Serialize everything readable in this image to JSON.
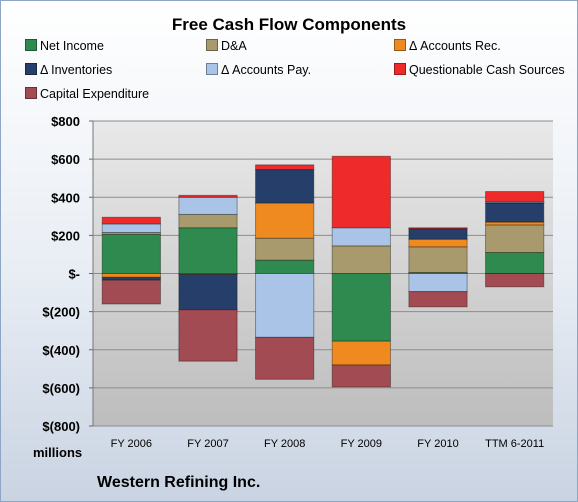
{
  "chart_data": {
    "type": "bar",
    "stacked": true,
    "title": "Free Cash Flow Components",
    "categories": [
      "FY 2006",
      "FY 2007",
      "FY 2008",
      "FY 2009",
      "FY 2010",
      "TTM 6-2011"
    ],
    "y_tick_labels": [
      "$800",
      "$600",
      "$400",
      "$200",
      "$-",
      "$(200)",
      "$(400)",
      "$(600)",
      "$(800)"
    ],
    "y_tick_values": [
      800,
      600,
      400,
      200,
      0,
      -200,
      -400,
      -600,
      -800
    ],
    "ylim": [
      -800,
      800
    ],
    "ylabel": "millions",
    "grid": true,
    "legend_position": "top",
    "series": [
      {
        "name": "Net Income",
        "color": "#2f8a4f",
        "values": [
          205,
          240,
          70,
          -355,
          5,
          110
        ]
      },
      {
        "name": "D&A",
        "color": "#a89a6c",
        "values": [
          10,
          70,
          115,
          145,
          135,
          145
        ]
      },
      {
        "name": "Δ Accounts Rec.",
        "color": "#ef8a20",
        "values": [
          -20,
          -5,
          185,
          -125,
          40,
          15
        ]
      },
      {
        "name": "Δ Inventories",
        "color": "#263f6a",
        "values": [
          -15,
          -185,
          175,
          0,
          55,
          100
        ]
      },
      {
        "name": "Δ Accounts Pay.",
        "color": "#a9c4e6",
        "values": [
          45,
          90,
          -335,
          95,
          -95,
          5
        ]
      },
      {
        "name": "Questionable Cash Sources",
        "color": "#ee2a2a",
        "values": [
          35,
          10,
          25,
          375,
          5,
          55
        ]
      },
      {
        "name": "Capital Expenditure",
        "color": "#a34b52",
        "values": [
          -125,
          -270,
          -220,
          -115,
          -80,
          -70
        ]
      }
    ]
  },
  "footer": {
    "units_label": "millions",
    "company": "Western Refining Inc."
  }
}
